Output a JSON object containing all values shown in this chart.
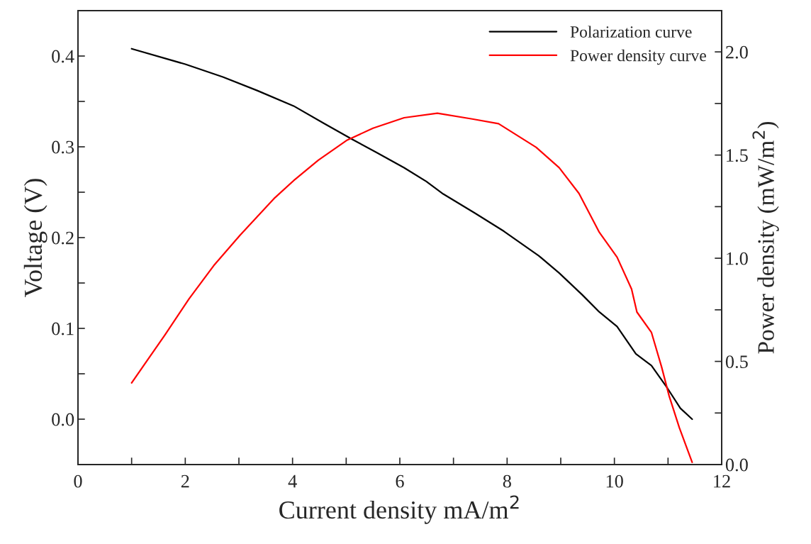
{
  "chart_data": {
    "type": "line",
    "xlabel": "Current density mA/m$^{2}$",
    "ylabel": "Voltage (V)",
    "y2label": "Power density (mW/m$^{2}$)",
    "xlim": [
      0,
      12
    ],
    "xticks": [
      0,
      {
        "value": 1,
        "label": null
      },
      2,
      {
        "value": 3,
        "label": null
      },
      4,
      {
        "value": 5,
        "label": null
      },
      6,
      {
        "value": 7,
        "label": null
      },
      8,
      {
        "value": 9,
        "label": null
      },
      10,
      {
        "value": 11,
        "label": null
      },
      12
    ],
    "ylim": [
      -0.05,
      0.45
    ],
    "yticks": [
      {
        "value": -0.05,
        "label": null
      },
      {
        "value": 0.0,
        "label": "0.0"
      },
      {
        "value": 0.05,
        "label": null
      },
      {
        "value": 0.1,
        "label": "0.1"
      },
      {
        "value": 0.15,
        "label": null
      },
      {
        "value": 0.2,
        "label": "0.2"
      },
      {
        "value": 0.25,
        "label": null
      },
      {
        "value": 0.3,
        "label": "0.3"
      },
      {
        "value": 0.35,
        "label": null
      },
      {
        "value": 0.4,
        "label": "0.4"
      }
    ],
    "y2lim": [
      0,
      2.2
    ],
    "y2ticks": [
      {
        "value": 0.0,
        "label": "0.0"
      },
      {
        "value": 0.25,
        "label": null
      },
      {
        "value": 0.5,
        "label": "0.5"
      },
      {
        "value": 0.75,
        "label": null
      },
      {
        "value": 1.0,
        "label": "1.0"
      },
      {
        "value": 1.25,
        "label": null
      },
      {
        "value": 1.5,
        "label": "1.5"
      },
      {
        "value": 1.75,
        "label": null
      },
      {
        "value": 2.0,
        "label": "2.0"
      }
    ],
    "legend": "top right",
    "grid": false,
    "line_style": "solid",
    "marker": "none",
    "series": [
      {
        "name": "Polarization curve",
        "color": "#000000",
        "axis": "y",
        "x": [
          1.0,
          2.0,
          2.7,
          3.34,
          4.02,
          4.58,
          5.12,
          5.56,
          6.08,
          6.49,
          6.81,
          7.4,
          7.94,
          8.59,
          8.97,
          9.4,
          9.72,
          10.05,
          10.4,
          10.69,
          10.99,
          11.23,
          11.45
        ],
        "values": [
          0.408,
          0.391,
          0.377,
          0.362,
          0.345,
          0.326,
          0.308,
          0.294,
          0.277,
          0.262,
          0.248,
          0.227,
          0.207,
          0.18,
          0.161,
          0.137,
          0.118,
          0.102,
          0.072,
          0.059,
          0.034,
          0.012,
          0.0
        ]
      },
      {
        "name": "Power density curve",
        "color": "#ff0000",
        "axis": "y2",
        "x": [
          1.0,
          1.62,
          2.07,
          2.53,
          3.02,
          3.67,
          4.02,
          4.48,
          5.02,
          5.5,
          6.08,
          6.7,
          7.35,
          7.84,
          8.54,
          8.97,
          9.34,
          9.72,
          10.05,
          10.32,
          10.42,
          10.69,
          10.88,
          11.02,
          11.21,
          11.45
        ],
        "values": [
          0.396,
          0.628,
          0.803,
          0.964,
          1.111,
          1.293,
          1.376,
          1.475,
          1.573,
          1.63,
          1.681,
          1.703,
          1.675,
          1.652,
          1.538,
          1.439,
          1.314,
          1.125,
          1.005,
          0.851,
          0.739,
          0.641,
          0.473,
          0.333,
          0.179,
          0.011
        ]
      }
    ]
  }
}
